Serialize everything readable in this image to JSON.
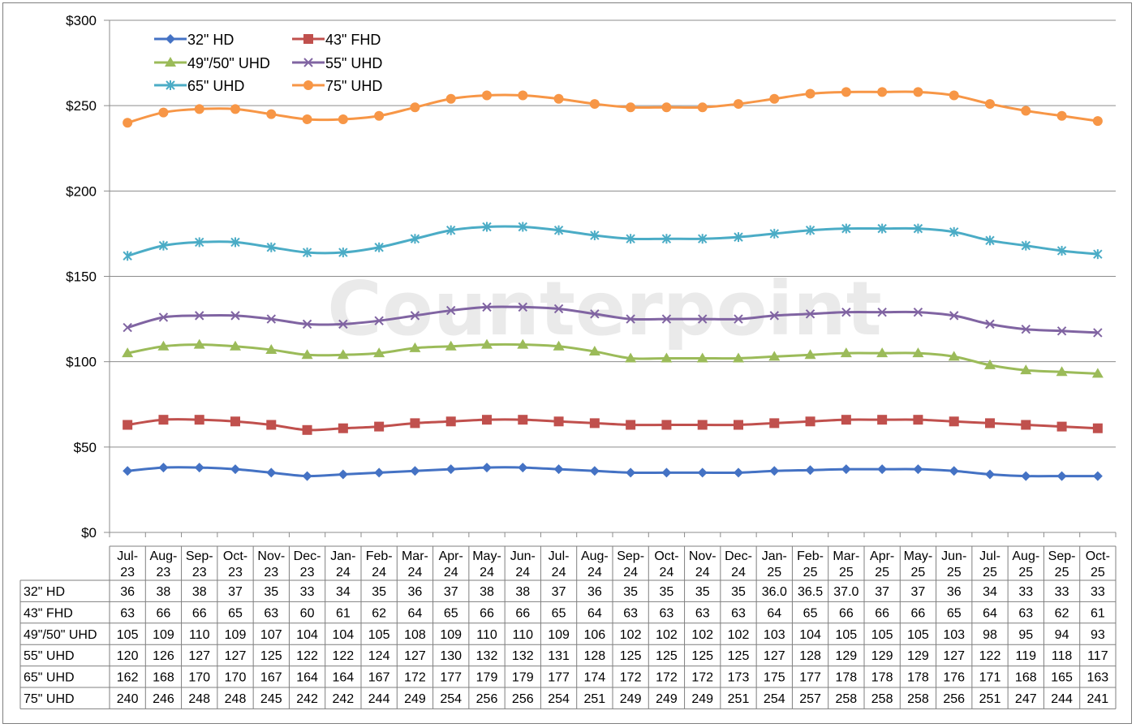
{
  "watermark": "Counterpoint",
  "chart_data": {
    "type": "line",
    "title": "",
    "xlabel": "",
    "ylabel": "",
    "ylim": [
      0,
      300
    ],
    "y_ticks": [
      "$0",
      "$50",
      "$100",
      "$150",
      "$200",
      "$250",
      "$300"
    ],
    "y_tick_values": [
      0,
      50,
      100,
      150,
      200,
      250,
      300
    ],
    "grid": true,
    "legend_position": "top-left",
    "categories": [
      [
        "Jul-",
        "23"
      ],
      [
        "Aug-",
        "23"
      ],
      [
        "Sep-",
        "23"
      ],
      [
        "Oct-",
        "23"
      ],
      [
        "Nov-",
        "23"
      ],
      [
        "Dec-",
        "23"
      ],
      [
        "Jan-",
        "24"
      ],
      [
        "Feb-",
        "24"
      ],
      [
        "Mar-",
        "24"
      ],
      [
        "Apr-",
        "24"
      ],
      [
        "May-",
        "24"
      ],
      [
        "Jun-",
        "24"
      ],
      [
        "Jul-",
        "24"
      ],
      [
        "Aug-",
        "24"
      ],
      [
        "Sep-",
        "24"
      ],
      [
        "Oct-",
        "24"
      ],
      [
        "Nov-",
        "24"
      ],
      [
        "Dec-",
        "24"
      ],
      [
        "Jan-",
        "25"
      ],
      [
        "Feb-",
        "25"
      ],
      [
        "Mar-",
        "25"
      ],
      [
        "Apr-",
        "25"
      ],
      [
        "May-",
        "25"
      ],
      [
        "Jun-",
        "25"
      ],
      [
        "Jul-",
        "25"
      ],
      [
        "Aug-",
        "25"
      ],
      [
        "Sep-",
        "25"
      ],
      [
        "Oct-",
        "25"
      ]
    ],
    "series": [
      {
        "name": "32\" HD",
        "color": "#4472c4",
        "marker": "diamond",
        "values": [
          36,
          38,
          38,
          37,
          35,
          33,
          34,
          35,
          36,
          37,
          38,
          38,
          37,
          36,
          35,
          35,
          35,
          35,
          36.0,
          36.5,
          37.0,
          37,
          37,
          36,
          34,
          33,
          33,
          33
        ],
        "labels": [
          "36",
          "38",
          "38",
          "37",
          "35",
          "33",
          "34",
          "35",
          "36",
          "37",
          "38",
          "38",
          "37",
          "36",
          "35",
          "35",
          "35",
          "35",
          "36.0",
          "36.5",
          "37.0",
          "37",
          "37",
          "36",
          "34",
          "33",
          "33",
          "33"
        ]
      },
      {
        "name": "43\" FHD",
        "color": "#c0504d",
        "marker": "square",
        "values": [
          63,
          66,
          66,
          65,
          63,
          60,
          61,
          62,
          64,
          65,
          66,
          66,
          65,
          64,
          63,
          63,
          63,
          63,
          64,
          65,
          66,
          66,
          66,
          65,
          64,
          63,
          62,
          61
        ],
        "labels": [
          "63",
          "66",
          "66",
          "65",
          "63",
          "60",
          "61",
          "62",
          "64",
          "65",
          "66",
          "66",
          "65",
          "64",
          "63",
          "63",
          "63",
          "63",
          "64",
          "65",
          "66",
          "66",
          "66",
          "65",
          "64",
          "63",
          "62",
          "61"
        ]
      },
      {
        "name": "49\"/50\" UHD",
        "color": "#9bbb59",
        "marker": "triangle",
        "values": [
          105,
          109,
          110,
          109,
          107,
          104,
          104,
          105,
          108,
          109,
          110,
          110,
          109,
          106,
          102,
          102,
          102,
          102,
          103,
          104,
          105,
          105,
          105,
          103,
          98,
          95,
          94,
          93
        ],
        "labels": [
          "105",
          "109",
          "110",
          "109",
          "107",
          "104",
          "104",
          "105",
          "108",
          "109",
          "110",
          "110",
          "109",
          "106",
          "102",
          "102",
          "102",
          "102",
          "103",
          "104",
          "105",
          "105",
          "105",
          "103",
          "98",
          "95",
          "94",
          "93"
        ]
      },
      {
        "name": "55\" UHD",
        "color": "#8064a2",
        "marker": "x",
        "values": [
          120,
          126,
          127,
          127,
          125,
          122,
          122,
          124,
          127,
          130,
          132,
          132,
          131,
          128,
          125,
          125,
          125,
          125,
          127,
          128,
          129,
          129,
          129,
          127,
          122,
          119,
          118,
          117
        ],
        "labels": [
          "120",
          "126",
          "127",
          "127",
          "125",
          "122",
          "122",
          "124",
          "127",
          "130",
          "132",
          "132",
          "131",
          "128",
          "125",
          "125",
          "125",
          "125",
          "127",
          "128",
          "129",
          "129",
          "129",
          "127",
          "122",
          "119",
          "118",
          "117"
        ]
      },
      {
        "name": "65\" UHD",
        "color": "#4bacc6",
        "marker": "star",
        "values": [
          162,
          168,
          170,
          170,
          167,
          164,
          164,
          167,
          172,
          177,
          179,
          179,
          177,
          174,
          172,
          172,
          172,
          173,
          175,
          177,
          178,
          178,
          178,
          176,
          171,
          168,
          165,
          163
        ],
        "labels": [
          "162",
          "168",
          "170",
          "170",
          "167",
          "164",
          "164",
          "167",
          "172",
          "177",
          "179",
          "179",
          "177",
          "174",
          "172",
          "172",
          "172",
          "173",
          "175",
          "177",
          "178",
          "178",
          "178",
          "176",
          "171",
          "168",
          "165",
          "163"
        ]
      },
      {
        "name": "75\" UHD",
        "color": "#f79646",
        "marker": "circle",
        "values": [
          240,
          246,
          248,
          248,
          245,
          242,
          242,
          244,
          249,
          254,
          256,
          256,
          254,
          251,
          249,
          249,
          249,
          251,
          254,
          257,
          258,
          258,
          258,
          256,
          251,
          247,
          244,
          241
        ],
        "labels": [
          "240",
          "246",
          "248",
          "248",
          "245",
          "242",
          "242",
          "244",
          "249",
          "254",
          "256",
          "256",
          "254",
          "251",
          "249",
          "249",
          "249",
          "251",
          "254",
          "257",
          "258",
          "258",
          "258",
          "256",
          "251",
          "247",
          "244",
          "241"
        ]
      }
    ]
  }
}
